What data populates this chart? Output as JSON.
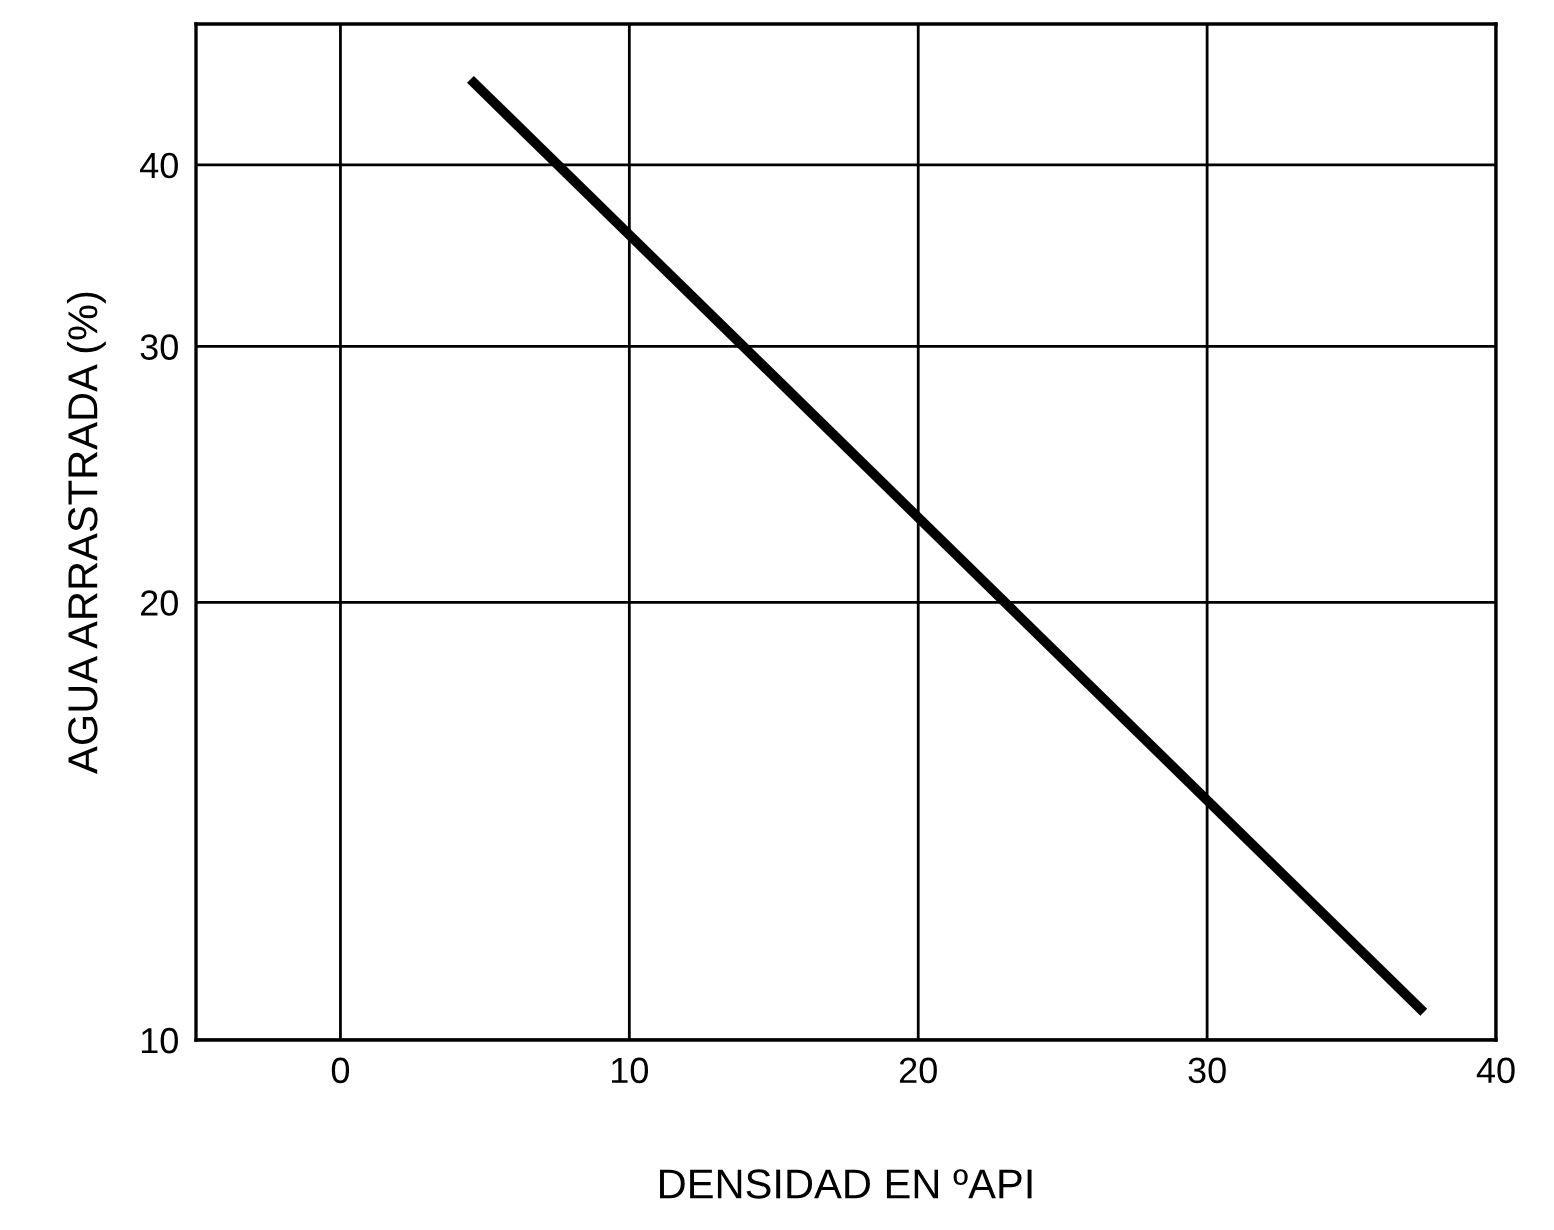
{
  "chart_data": {
    "type": "line",
    "xlabel": "DENSIDAD EN ºAPI",
    "ylabel": "AGUA ARRASTRADA (%)",
    "x": [
      4.5,
      37.5
    ],
    "series": [
      {
        "color": "#000000",
        "values": [
          45.8,
          10.45
        ]
      }
    ],
    "xlim": [
      -5,
      40
    ],
    "xticks": [
      0,
      10,
      20,
      30,
      40
    ],
    "ylim": [
      10,
      50
    ],
    "yticks": [
      10,
      20,
      30,
      40
    ],
    "log": true,
    "grid": true,
    "marker": "none",
    "line_style": "solid"
  }
}
